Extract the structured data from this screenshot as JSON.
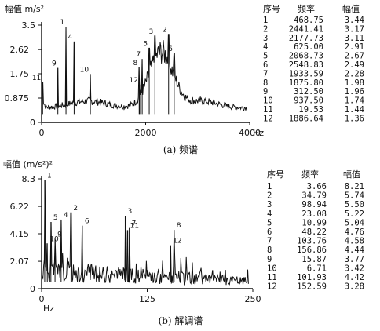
{
  "chart_data": [
    {
      "type": "line",
      "caption": "(a) 频谱",
      "ylabel": "幅值",
      "yunit": "m/s²",
      "xunit": "Hz",
      "xlim": [
        0,
        4000
      ],
      "ylim": [
        0,
        3.5
      ],
      "yticks": [
        "3.5",
        "2.62",
        "1.75",
        "0.875",
        "0"
      ],
      "xticks": [
        "0",
        "2000",
        "4000"
      ],
      "table_headers": [
        "序号",
        "频率",
        "幅值"
      ],
      "peaks": [
        {
          "n": "1",
          "f": 468.75,
          "a": 3.44
        },
        {
          "n": "2",
          "f": 2441.41,
          "a": 3.17
        },
        {
          "n": "3",
          "f": 2177.73,
          "a": 3.11
        },
        {
          "n": "4",
          "f": 625.0,
          "a": 2.91
        },
        {
          "n": "5",
          "f": 2068.73,
          "a": 2.67
        },
        {
          "n": "6",
          "f": 2548.83,
          "a": 2.49
        },
        {
          "n": "7",
          "f": 1933.59,
          "a": 2.28
        },
        {
          "n": "8",
          "f": 1875.8,
          "a": 1.98
        },
        {
          "n": "9",
          "f": 312.5,
          "a": 1.96
        },
        {
          "n": "10",
          "f": 937.5,
          "a": 1.74
        },
        {
          "n": "11",
          "f": 19.53,
          "a": 1.44
        },
        {
          "n": "12",
          "f": 1886.64,
          "a": 1.36
        }
      ],
      "table_rows": [
        [
          "1",
          "468.75",
          "3.44"
        ],
        [
          "2",
          "2441.41",
          "3.17"
        ],
        [
          "3",
          "2177.73",
          "3.11"
        ],
        [
          "4",
          "625.00",
          "2.91"
        ],
        [
          "5",
          "2068.73",
          "2.67"
        ],
        [
          "6",
          "2548.83",
          "2.49"
        ],
        [
          "7",
          "1933.59",
          "2.28"
        ],
        [
          "8",
          "1875.80",
          "1.98"
        ],
        [
          "9",
          "312.50",
          "1.96"
        ],
        [
          "10",
          "937.50",
          "1.74"
        ],
        [
          "11",
          "19.53",
          "1.44"
        ],
        [
          "12",
          "1886.64",
          "1.36"
        ]
      ]
    },
    {
      "type": "line",
      "caption": "(b) 解调谱",
      "ylabel": "幅值",
      "yunit": "(m/s²)²",
      "xunit": "Hz",
      "xlim": [
        0,
        250
      ],
      "ylim": [
        0,
        8.3
      ],
      "yticks": [
        "8.3",
        "6.22",
        "4.15",
        "2.07",
        "0"
      ],
      "xticks": [
        "0",
        "125",
        "250"
      ],
      "table_headers": [
        "序号",
        "频率",
        "幅值"
      ],
      "peaks": [
        {
          "n": "1",
          "f": 3.66,
          "a": 8.21
        },
        {
          "n": "2",
          "f": 34.79,
          "a": 5.74
        },
        {
          "n": "3",
          "f": 98.94,
          "a": 5.5
        },
        {
          "n": "4",
          "f": 23.08,
          "a": 5.22
        },
        {
          "n": "5",
          "f": 10.99,
          "a": 5.04
        },
        {
          "n": "6",
          "f": 48.22,
          "a": 4.76
        },
        {
          "n": "7",
          "f": 103.76,
          "a": 4.58
        },
        {
          "n": "8",
          "f": 156.86,
          "a": 4.44
        },
        {
          "n": "9",
          "f": 15.87,
          "a": 3.77
        },
        {
          "n": "10",
          "f": 6.71,
          "a": 3.42
        },
        {
          "n": "11",
          "f": 101.93,
          "a": 4.42
        },
        {
          "n": "12",
          "f": 152.59,
          "a": 3.28
        }
      ],
      "table_rows": [
        [
          "1",
          "3.66",
          "8.21"
        ],
        [
          "2",
          "34.79",
          "5.74"
        ],
        [
          "3",
          "98.94",
          "5.50"
        ],
        [
          "4",
          "23.08",
          "5.22"
        ],
        [
          "5",
          "10.99",
          "5.04"
        ],
        [
          "6",
          "48.22",
          "4.76"
        ],
        [
          "7",
          "103.76",
          "4.58"
        ],
        [
          "8",
          "156.86",
          "4.44"
        ],
        [
          "9",
          "15.87",
          "3.77"
        ],
        [
          "10",
          "6.71",
          "3.42"
        ],
        [
          "11",
          "101.93",
          "4.42"
        ],
        [
          "12",
          "152.59",
          "3.28"
        ]
      ]
    }
  ]
}
